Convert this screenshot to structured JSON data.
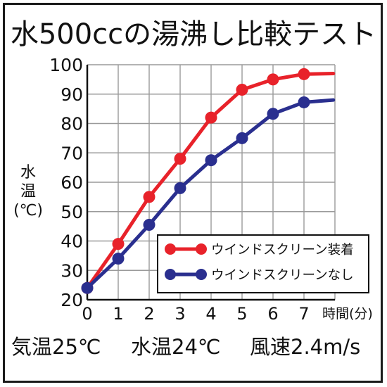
{
  "title": "水500ccの湯沸し比較テスト",
  "conditions": {
    "air_temp": "気温25℃",
    "water_temp": "水温24℃",
    "wind_speed": "風速2.4m/s"
  },
  "chart_data": {
    "type": "line",
    "title": "水500ccの湯沸し比較テスト",
    "ylabel_chars": [
      "水",
      "温",
      "(℃)"
    ],
    "xlabel": "時間(分)",
    "x": [
      0,
      1,
      2,
      3,
      4,
      5,
      6,
      7
    ],
    "xlim": [
      0,
      8
    ],
    "ylim": [
      20,
      100
    ],
    "yticks": [
      20,
      30,
      40,
      50,
      60,
      70,
      80,
      90,
      100
    ],
    "xticks": [
      0,
      1,
      2,
      3,
      4,
      5,
      6,
      7
    ],
    "grid": true,
    "legend_position": "center-right",
    "series": [
      {
        "name": "ウインドスクリーン装着",
        "color": "#e8222a",
        "values": [
          24,
          39,
          55,
          68,
          82,
          91.5,
          95,
          96.8
        ],
        "tail_end": [
          7.95,
          97
        ]
      },
      {
        "name": "ウインドスクリーンなし",
        "color": "#2a2f8f",
        "values": [
          24,
          34,
          45.5,
          58,
          67.5,
          75,
          83.3,
          87.2
        ],
        "tail_end": [
          7.95,
          88
        ]
      }
    ]
  }
}
